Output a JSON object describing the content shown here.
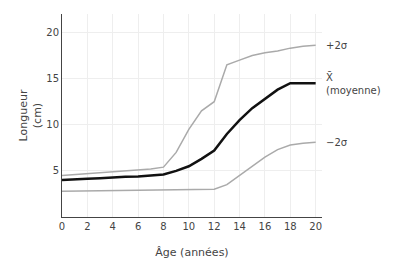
{
  "chart_data": {
    "type": "line",
    "xlabel": "Âge (années)",
    "ylabel": "Longueur\n(cm)",
    "series": [
      {
        "name": "+2σ",
        "color": "#aaaaaa",
        "x": [
          0,
          1,
          2,
          3,
          4,
          5,
          6,
          7,
          8,
          9,
          10,
          11,
          12,
          13,
          14,
          15,
          16,
          17,
          18,
          19,
          20
        ],
        "values": [
          4.5,
          4.6,
          4.7,
          4.8,
          4.9,
          5.0,
          5.1,
          5.2,
          5.4,
          7.0,
          9.5,
          11.5,
          12.5,
          16.5,
          17.0,
          17.5,
          17.8,
          18.0,
          18.3,
          18.5,
          18.6
        ]
      },
      {
        "name": "X̄\n(moyenne)",
        "color": "#111111",
        "x": [
          0,
          1,
          2,
          3,
          4,
          5,
          6,
          7,
          8,
          9,
          10,
          11,
          12,
          13,
          14,
          15,
          16,
          17,
          18,
          19,
          20
        ],
        "values": [
          4.0,
          4.1,
          4.15,
          4.2,
          4.3,
          4.35,
          4.4,
          4.5,
          4.6,
          5.0,
          5.5,
          6.3,
          7.2,
          9.0,
          10.5,
          11.8,
          12.8,
          13.8,
          14.5,
          14.5,
          14.5
        ]
      },
      {
        "name": "−2σ",
        "color": "#aaaaaa",
        "x": [
          0,
          1,
          2,
          3,
          4,
          5,
          6,
          7,
          8,
          9,
          10,
          11,
          12,
          13,
          14,
          15,
          16,
          17,
          18,
          19,
          20
        ],
        "values": [
          2.8,
          2.82,
          2.84,
          2.86,
          2.88,
          2.9,
          2.92,
          2.94,
          2.95,
          2.96,
          2.97,
          2.98,
          3.0,
          3.5,
          4.5,
          5.5,
          6.5,
          7.3,
          7.8,
          8.0,
          8.1
        ]
      }
    ],
    "xlim": [
      0,
      20.5
    ],
    "ylim": [
      0,
      22
    ],
    "xticks": [
      0,
      2,
      4,
      6,
      8,
      10,
      12,
      14,
      16,
      18,
      20
    ],
    "yticks": [
      5,
      10,
      15,
      20
    ],
    "grid": true,
    "legend": false
  }
}
